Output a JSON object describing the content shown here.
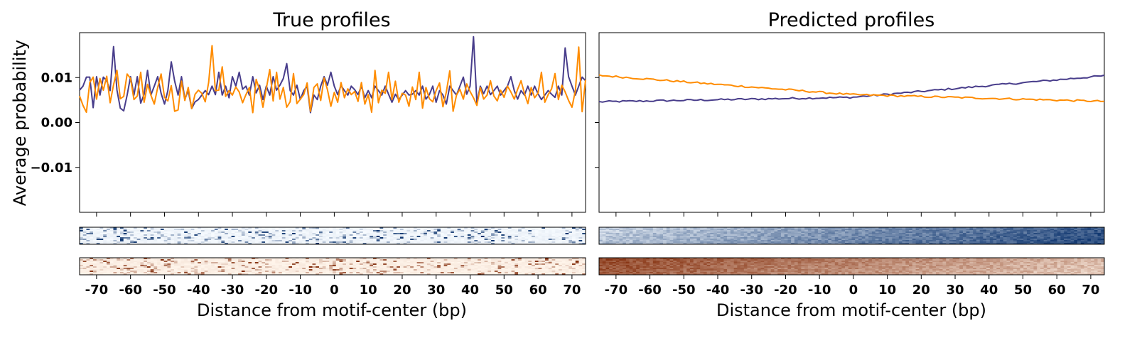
{
  "colors": {
    "positive": "#483D8B",
    "negative": "#FF8C00",
    "heat_blue": [
      "#f7fbff",
      "#08306b"
    ],
    "heat_orange": [
      "#fff5eb",
      "#7f2704"
    ]
  },
  "chart_data": [
    {
      "type": "line",
      "title": "True profiles",
      "ylabel": "Average probability",
      "xlabel": "Distance from motif-center (bp)",
      "xlim": [
        -75,
        74
      ],
      "ylim": [
        -0.02,
        0.02
      ],
      "yticks": [
        -0.01,
        0.0,
        0.01
      ],
      "ytick_labels": [
        "−0.01",
        "0.00",
        "0.01"
      ],
      "xticks": [
        -70,
        -60,
        -50,
        -40,
        -30,
        -20,
        -10,
        0,
        10,
        20,
        30,
        40,
        50,
        60,
        70
      ],
      "xtick_labels": [
        "-70",
        "-60",
        "-50",
        "-40",
        "-30",
        "-20",
        "-10",
        "0",
        "10",
        "20",
        "30",
        "40",
        "50",
        "60",
        "70"
      ],
      "series": [
        {
          "values": [
            0.0072,
            0.0081,
            0.0101,
            0.0101,
            0.0033,
            0.0102,
            0.0061,
            0.0101,
            0.0093,
            0.0071,
            0.0169,
            0.0072,
            0.0032,
            0.0026,
            0.0061,
            0.0102,
            0.0061,
            0.0102,
            0.0043,
            0.0063,
            0.0116,
            0.0061,
            0.0081,
            0.0102,
            0.0065,
            0.0041,
            0.0071,
            0.0135,
            0.0092,
            0.0061,
            0.0102,
            0.0052,
            0.0071,
            0.0031,
            0.0046,
            0.0051,
            0.0061,
            0.0071,
            0.0062,
            0.0081,
            0.0062,
            0.0112,
            0.0061,
            0.0081,
            0.0055,
            0.0102,
            0.0081,
            0.0112,
            0.0074,
            0.0081,
            0.0061,
            0.0102,
            0.0066,
            0.0083,
            0.0051,
            0.0081,
            0.0061,
            0.0102,
            0.0072,
            0.0083,
            0.0098,
            0.0131,
            0.0071,
            0.0061,
            0.0083,
            0.0051,
            0.0071,
            0.0081,
            0.0022,
            0.0061,
            0.0051,
            0.0081,
            0.0102,
            0.0083,
            0.0112,
            0.0081,
            0.0062,
            0.0082,
            0.0071,
            0.0061,
            0.0081,
            0.0073,
            0.0062,
            0.0081,
            0.0055,
            0.0071,
            0.0055,
            0.0081,
            0.0071,
            0.0061,
            0.0081,
            0.0063,
            0.0045,
            0.0063,
            0.0051,
            0.0061,
            0.0071,
            0.0061,
            0.0063,
            0.0071,
            0.0061,
            0.0081,
            0.0052,
            0.0062,
            0.0081,
            0.0045,
            0.0071,
            0.0061,
            0.0041,
            0.0081,
            0.0071,
            0.0061,
            0.0081,
            0.0101,
            0.0063,
            0.0081,
            0.0191,
            0.0044,
            0.0081,
            0.0064,
            0.0081,
            0.0062,
            0.0071,
            0.0081,
            0.0061,
            0.0071,
            0.0081,
            0.0102,
            0.0071,
            0.0052,
            0.0071,
            0.0061,
            0.0081,
            0.0061,
            0.0081,
            0.0064,
            0.0051,
            0.0061,
            0.0071,
            0.0063,
            0.0056,
            0.0081,
            0.0061,
            0.0166,
            0.0102,
            0.0081,
            0.0061,
            0.0081,
            0.0101,
            0.0093
          ]
        },
        {
          "values": [
            0.0059,
            0.0038,
            0.0023,
            0.0089,
            0.0101,
            0.0052,
            0.0098,
            0.0072,
            0.0103,
            0.0044,
            0.0084,
            0.0116,
            0.0053,
            0.0058,
            0.0108,
            0.0098,
            0.0051,
            0.0059,
            0.0112,
            0.0045,
            0.0085,
            0.0061,
            0.0041,
            0.0078,
            0.0108,
            0.0056,
            0.0048,
            0.0082,
            0.0025,
            0.0028,
            0.0092,
            0.0049,
            0.0078,
            0.0031,
            0.0063,
            0.0072,
            0.0065,
            0.0046,
            0.0089,
            0.0171,
            0.0071,
            0.0072,
            0.0124,
            0.0058,
            0.0071,
            0.0061,
            0.0079,
            0.0068,
            0.0044,
            0.0062,
            0.0078,
            0.0022,
            0.0096,
            0.0073,
            0.0034,
            0.0076,
            0.0118,
            0.0048,
            0.0112,
            0.0052,
            0.0078,
            0.0034,
            0.0046,
            0.0109,
            0.0042,
            0.0052,
            0.0062,
            0.0088,
            0.0025,
            0.0078,
            0.0086,
            0.0049,
            0.0099,
            0.0073,
            0.0036,
            0.0067,
            0.0045,
            0.0089,
            0.0055,
            0.0075,
            0.0062,
            0.0069,
            0.0047,
            0.0089,
            0.0041,
            0.0062,
            0.0023,
            0.0116,
            0.0044,
            0.0072,
            0.0065,
            0.0112,
            0.0051,
            0.0092,
            0.0045,
            0.0065,
            0.0061,
            0.0036,
            0.0079,
            0.0051,
            0.0112,
            0.0032,
            0.0078,
            0.0053,
            0.0046,
            0.0071,
            0.0088,
            0.0035,
            0.0068,
            0.0115,
            0.0025,
            0.0061,
            0.0074,
            0.0052,
            0.0086,
            0.0069,
            0.0055,
            0.0038,
            0.0078,
            0.0052,
            0.0061,
            0.0093,
            0.0059,
            0.0048,
            0.0072,
            0.0056,
            0.0081,
            0.0068,
            0.0052,
            0.0074,
            0.0093,
            0.0065,
            0.0042,
            0.0078,
            0.0055,
            0.0065,
            0.0112,
            0.0045,
            0.0062,
            0.0075,
            0.0109,
            0.0051,
            0.0083,
            0.0068,
            0.0049,
            0.0034,
            0.0071,
            0.0168,
            0.0024,
            0.0095
          ]
        }
      ]
    },
    {
      "type": "line",
      "title": "Predicted profiles",
      "xlabel": "Distance from motif-center (bp)",
      "xlim": [
        -75,
        74
      ],
      "ylim": [
        -0.02,
        0.02
      ],
      "xticks": [
        -70,
        -60,
        -50,
        -40,
        -30,
        -20,
        -10,
        0,
        10,
        20,
        30,
        40,
        50,
        60,
        70
      ],
      "xtick_labels": [
        "-70",
        "-60",
        "-50",
        "-40",
        "-30",
        "-20",
        "-10",
        "0",
        "10",
        "20",
        "30",
        "40",
        "50",
        "60",
        "70"
      ],
      "series": [
        {
          "start": 0.0046,
          "mid": 0.0056,
          "end": 0.0104
        },
        {
          "start": 0.0105,
          "mid": 0.0062,
          "end": 0.0047
        }
      ]
    }
  ]
}
